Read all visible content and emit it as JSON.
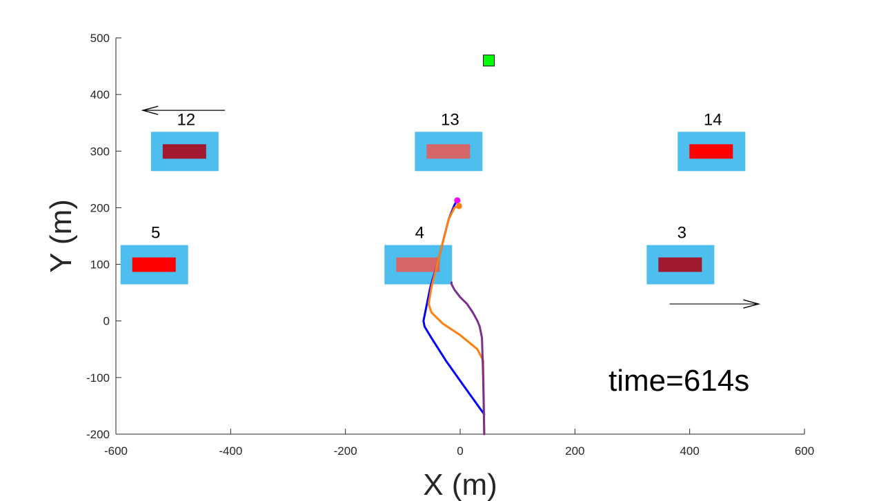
{
  "chart_data": {
    "type": "line",
    "xlabel": "X (m)",
    "ylabel": "Y (m)",
    "xlim": [
      -600,
      600
    ],
    "ylim": [
      -200,
      500
    ],
    "xticks": [
      "-600",
      "-400",
      "-200",
      "0",
      "200",
      "400",
      "600"
    ],
    "yticks": [
      "-200",
      "-100",
      "0",
      "100",
      "200",
      "300",
      "400",
      "500"
    ],
    "grid": false,
    "annotation": "time=614s",
    "objects": [
      {
        "label": "12",
        "x": -480,
        "y": 300,
        "inner_color": "#A0192F"
      },
      {
        "label": "13",
        "x": -20,
        "y": 300,
        "inner_color": "#D5676A"
      },
      {
        "label": "14",
        "x": 438,
        "y": 300,
        "inner_color": "#FF0000"
      },
      {
        "label": "5",
        "x": -533,
        "y": 100,
        "inner_color": "#FF0000"
      },
      {
        "label": "4",
        "x": -73,
        "y": 100,
        "inner_color": "#D5676A"
      },
      {
        "label": "3",
        "x": 384,
        "y": 100,
        "inner_color": "#A0192F"
      }
    ],
    "object_outer_color": "#4DBEEE",
    "target_marker": {
      "x": 50,
      "y": 460,
      "color": "#00FF00"
    },
    "arrows": [
      {
        "from": [
          -410,
          372
        ],
        "to": [
          -553,
          372
        ],
        "direction": "left"
      },
      {
        "from": [
          365,
          30
        ],
        "to": [
          520,
          30
        ],
        "direction": "right"
      }
    ],
    "series": [
      {
        "color": "#0000FF",
        "x": [
          42,
          10,
          -25,
          -50,
          -62,
          -64,
          -60,
          -52,
          -40,
          -30,
          -20,
          -10,
          -5
        ],
        "y": [
          -165,
          -120,
          -70,
          -30,
          -10,
          0,
          20,
          60,
          100,
          140,
          180,
          205,
          213
        ]
      },
      {
        "color": "#FF7F0E",
        "x": [
          42,
          40,
          30,
          0,
          -30,
          -50,
          -55,
          -50,
          -40,
          -30,
          -20,
          -10,
          -2
        ],
        "y": [
          -200,
          -70,
          -50,
          -25,
          -5,
          15,
          30,
          60,
          100,
          140,
          180,
          200,
          203
        ]
      },
      {
        "color": "#7E2F8E",
        "x": [
          42,
          40,
          38,
          34,
          30,
          22,
          12,
          0,
          -10,
          -15,
          -15
        ],
        "y": [
          -200,
          -100,
          -30,
          -10,
          0,
          15,
          30,
          42,
          55,
          65,
          68
        ]
      }
    ],
    "end_markers": [
      {
        "x": -5,
        "y": 213,
        "color": "#FF00FF"
      },
      {
        "x": -2,
        "y": 203,
        "color": "#FF7F0E"
      }
    ]
  }
}
